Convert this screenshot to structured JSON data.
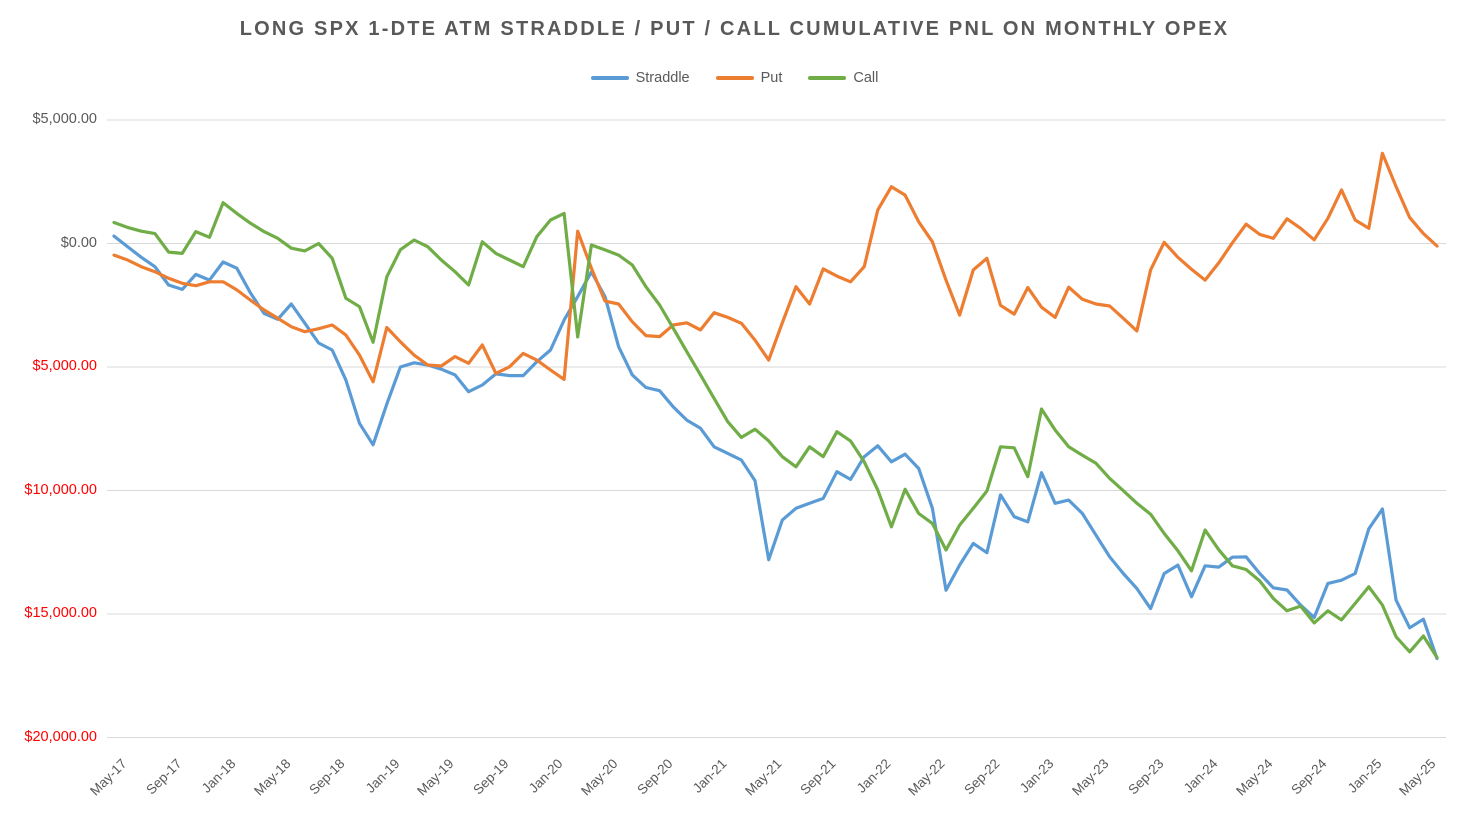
{
  "title": "LONG SPX 1-DTE ATM STRADDLE / PUT / CALL CUMULATIVE PNL ON MONTHLY OPEX",
  "chart_data": {
    "type": "line",
    "title": "LONG SPX 1-DTE ATM STRADDLE / PUT / CALL CUMULATIVE PNL ON MONTHLY OPEX",
    "legend_position": "top",
    "grid": true,
    "gridline_color": "#D9D9D9",
    "ylim": [
      -20000,
      5000
    ],
    "x_label_every": 4,
    "y_ticks": [
      {
        "label": "$5,000.00",
        "value": 5000,
        "color": "#595959"
      },
      {
        "label": "$0.00",
        "value": 0,
        "color": "#595959"
      },
      {
        "label": "$5,000.00",
        "value": -5000,
        "color": "#FF0000"
      },
      {
        "label": "$10,000.00",
        "value": -10000,
        "color": "#FF0000"
      },
      {
        "label": "$15,000.00",
        "value": -15000,
        "color": "#FF0000"
      },
      {
        "label": "$20,000.00",
        "value": -20000,
        "color": "#FF0000"
      }
    ],
    "categories": [
      "May-17",
      "Jun-17",
      "Jul-17",
      "Aug-17",
      "Sep-17",
      "Oct-17",
      "Nov-17",
      "Dec-17",
      "Jan-18",
      "Feb-18",
      "Mar-18",
      "Apr-18",
      "May-18",
      "Jun-18",
      "Jul-18",
      "Aug-18",
      "Sep-18",
      "Oct-18",
      "Nov-18",
      "Dec-18",
      "Jan-19",
      "Feb-19",
      "Mar-19",
      "Apr-19",
      "May-19",
      "Jun-19",
      "Jul-19",
      "Aug-19",
      "Sep-19",
      "Oct-19",
      "Nov-19",
      "Dec-19",
      "Jan-20",
      "Feb-20",
      "Mar-20",
      "Apr-20",
      "May-20",
      "Jun-20",
      "Jul-20",
      "Aug-20",
      "Sep-20",
      "Oct-20",
      "Nov-20",
      "Dec-20",
      "Jan-21",
      "Feb-21",
      "Mar-21",
      "Apr-21",
      "May-21",
      "Jun-21",
      "Jul-21",
      "Aug-21",
      "Sep-21",
      "Oct-21",
      "Nov-21",
      "Dec-21",
      "Jan-22",
      "Feb-22",
      "Mar-22",
      "Apr-22",
      "May-22",
      "Jun-22",
      "Jul-22",
      "Aug-22",
      "Sep-22",
      "Oct-22",
      "Nov-22",
      "Dec-22",
      "Jan-23",
      "Feb-23",
      "Mar-23",
      "Apr-23",
      "May-23",
      "Jun-23",
      "Jul-23",
      "Aug-23",
      "Sep-23",
      "Oct-23",
      "Nov-23",
      "Dec-23",
      "Jan-24",
      "Feb-24",
      "Mar-24",
      "Apr-24",
      "May-24",
      "Jun-24",
      "Jul-24",
      "Aug-24",
      "Sep-24",
      "Oct-24",
      "Nov-24",
      "Dec-24",
      "Jan-25",
      "Feb-25",
      "Mar-25",
      "Apr-25",
      "May-25",
      "Jun-25"
    ],
    "series": [
      {
        "name": "Straddle",
        "color": "#5B9BD5",
        "values": [
          300,
          -130,
          -560,
          -940,
          -1680,
          -1860,
          -1250,
          -1480,
          -750,
          -1000,
          -2000,
          -2830,
          -3070,
          -2450,
          -3230,
          -4030,
          -4310,
          -5530,
          -7280,
          -8150,
          -6500,
          -5000,
          -4830,
          -4920,
          -5090,
          -5320,
          -6000,
          -5730,
          -5280,
          -5350,
          -5350,
          -4790,
          -4310,
          -3100,
          -2150,
          -1150,
          -2150,
          -4180,
          -5320,
          -5830,
          -5960,
          -6610,
          -7150,
          -7480,
          -8230,
          -8500,
          -8770,
          -9600,
          -12800,
          -11200,
          -10720,
          -10520,
          -10320,
          -9240,
          -9550,
          -8630,
          -8190,
          -8840,
          -8530,
          -9110,
          -10720,
          -14040,
          -13020,
          -12140,
          -12520,
          -10180,
          -11060,
          -11270,
          -9280,
          -10520,
          -10390,
          -10930,
          -11810,
          -12690,
          -13360,
          -13970,
          -14780,
          -13360,
          -13020,
          -14300,
          -13050,
          -13100,
          -12700,
          -12690,
          -13360,
          -13940,
          -14030,
          -14640,
          -15140,
          -13760,
          -13630,
          -13360,
          -11550,
          -10750,
          -14440,
          -15560,
          -15210,
          -16800
        ]
      },
      {
        "name": "Put",
        "color": "#ED7D31",
        "values": [
          -470,
          -670,
          -940,
          -1140,
          -1410,
          -1610,
          -1710,
          -1550,
          -1550,
          -1880,
          -2290,
          -2690,
          -3030,
          -3370,
          -3570,
          -3450,
          -3300,
          -3710,
          -4520,
          -5600,
          -3400,
          -3980,
          -4520,
          -4920,
          -4960,
          -4580,
          -4850,
          -4110,
          -5260,
          -4990,
          -4450,
          -4720,
          -5120,
          -5500,
          500,
          -1000,
          -2330,
          -2450,
          -3170,
          -3730,
          -3770,
          -3300,
          -3210,
          -3500,
          -2800,
          -2990,
          -3230,
          -3910,
          -4720,
          -3210,
          -1750,
          -2450,
          -1030,
          -1320,
          -1550,
          -940,
          1360,
          2300,
          1960,
          880,
          70,
          -1480,
          -2900,
          -1070,
          -600,
          -2500,
          -2860,
          -1780,
          -2580,
          -2990,
          -1770,
          -2260,
          -2450,
          -2530,
          -3030,
          -3540,
          -1070,
          50,
          -560,
          -1045,
          -1480,
          -780,
          30,
          780,
          370,
          210,
          1000,
          615,
          150,
          1020,
          2170,
          950,
          615,
          3650,
          2300,
          1050,
          400,
          -100
        ]
      },
      {
        "name": "Call",
        "color": "#70AD47",
        "values": [
          850,
          650,
          500,
          400,
          -350,
          -400,
          480,
          250,
          1650,
          1220,
          820,
          480,
          210,
          -190,
          -300,
          0,
          -600,
          -2220,
          -2560,
          -4000,
          -1350,
          -250,
          140,
          -130,
          -670,
          -1140,
          -1680,
          70,
          -400,
          -670,
          -940,
          275,
          950,
          1220,
          -3780,
          -60,
          -260,
          -470,
          -870,
          -1750,
          -2490,
          -3430,
          -4380,
          -5320,
          -6270,
          -7220,
          -7850,
          -7520,
          -7990,
          -8630,
          -9040,
          -8230,
          -8630,
          -7620,
          -7990,
          -8840,
          -9980,
          -11470,
          -9950,
          -10930,
          -11330,
          -12410,
          -11400,
          -10720,
          -10020,
          -8230,
          -8270,
          -9440,
          -6700,
          -7550,
          -8230,
          -8570,
          -8900,
          -9510,
          -10010,
          -10520,
          -10960,
          -11740,
          -12440,
          -13250,
          -11600,
          -12400,
          -13050,
          -13200,
          -13660,
          -14370,
          -14870,
          -14680,
          -15360,
          -14870,
          -15240,
          -14570,
          -13900,
          -14640,
          -15925,
          -16530,
          -15890,
          -16760
        ]
      }
    ]
  }
}
